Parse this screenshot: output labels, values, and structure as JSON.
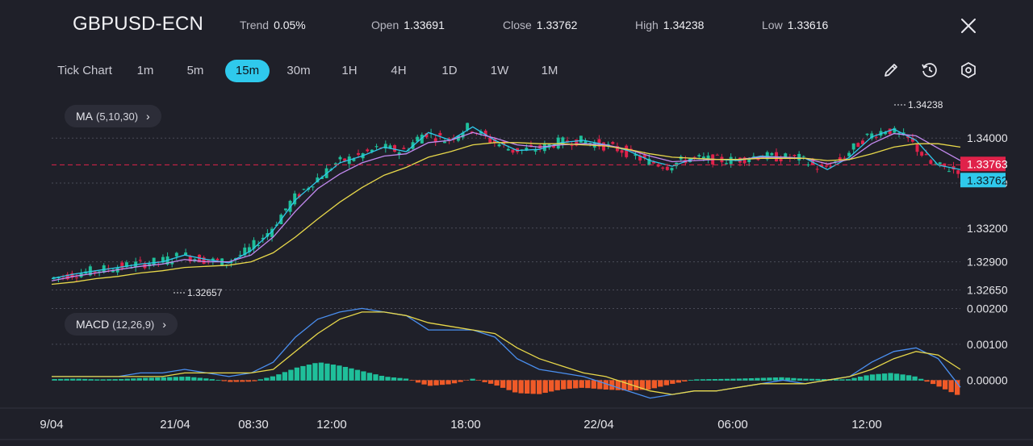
{
  "header": {
    "symbol": "GBPUSD-ECN",
    "stats": [
      {
        "label": "Trend",
        "value": "0.05%"
      },
      {
        "label": "Open",
        "value": "1.33691"
      },
      {
        "label": "Close",
        "value": "1.33762"
      },
      {
        "label": "High",
        "value": "1.34238"
      },
      {
        "label": "Low",
        "value": "1.33616"
      }
    ]
  },
  "timeframes": [
    "Tick Chart",
    "1m",
    "5m",
    "15m",
    "30m",
    "1H",
    "4H",
    "1D",
    "1W",
    "1M"
  ],
  "active_timeframe": "15m",
  "tools": [
    "pencil-icon",
    "clock-rewind-icon",
    "settings-hexagon-icon"
  ],
  "indicators": {
    "ma": {
      "label": "MA",
      "params": "(5,10,30)"
    },
    "macd": {
      "label": "MACD",
      "params": "(12,26,9)"
    }
  },
  "colors": {
    "bull": "#1fbf9a",
    "bear": "#e0224a",
    "ma5": "#2fc9ec",
    "ma10": "#c38af0",
    "ma30": "#e8d84a",
    "macd_line": "#4a8ff0",
    "signal_line": "#e8d84a",
    "hist_pos": "#1fbf9a",
    "hist_neg": "#f05a28",
    "active_tab": "#2fc9ec"
  },
  "chart_data": [
    {
      "type": "candlestick",
      "title": "",
      "y_ticks": [
        "1.34000",
        "1.33600",
        "1.33200",
        "1.32900",
        "1.32650"
      ],
      "ylim": [
        1.3256,
        1.3431
      ],
      "x_ticks": [
        "9/04",
        "21/04",
        "08:30",
        "12:00",
        "18:00",
        "22/04",
        "06:00",
        "12:00"
      ],
      "price_tags": {
        "ask": "1.33763",
        "bid": "1.33762"
      },
      "annotations": {
        "high": "1.34238",
        "low": "1.32657"
      },
      "series": [
        {
          "name": "MA5",
          "values": [
            1.3275,
            1.3279,
            1.3282,
            1.3285,
            1.3288,
            1.329,
            1.3296,
            1.3292,
            1.3289,
            1.33,
            1.3318,
            1.3345,
            1.3362,
            1.3378,
            1.3384,
            1.3392,
            1.3388,
            1.3405,
            1.3398,
            1.341,
            1.3398,
            1.3389,
            1.339,
            1.3396,
            1.3398,
            1.3394,
            1.3389,
            1.338,
            1.3375,
            1.3382,
            1.3381,
            1.338,
            1.3384,
            1.3383,
            1.3382,
            1.3372,
            1.3383,
            1.3401,
            1.3408,
            1.3398,
            1.3376,
            1.3372
          ]
        },
        {
          "name": "MA10",
          "values": [
            1.3273,
            1.3277,
            1.328,
            1.3283,
            1.3286,
            1.3288,
            1.3292,
            1.329,
            1.329,
            1.3296,
            1.3312,
            1.3335,
            1.3355,
            1.3368,
            1.3378,
            1.3384,
            1.3386,
            1.3396,
            1.3398,
            1.3405,
            1.34,
            1.3394,
            1.3392,
            1.3394,
            1.3395,
            1.3394,
            1.339,
            1.3384,
            1.3379,
            1.338,
            1.3381,
            1.3381,
            1.3383,
            1.3383,
            1.3382,
            1.3377,
            1.3381,
            1.3395,
            1.3404,
            1.3402,
            1.3391,
            1.338
          ]
        },
        {
          "name": "MA30",
          "values": [
            1.327,
            1.3272,
            1.3275,
            1.3277,
            1.328,
            1.3282,
            1.3285,
            1.3286,
            1.3287,
            1.329,
            1.3298,
            1.3312,
            1.3328,
            1.3343,
            1.3356,
            1.3367,
            1.3374,
            1.3383,
            1.3388,
            1.3394,
            1.3396,
            1.3396,
            1.3395,
            1.3395,
            1.3394,
            1.3393,
            1.339,
            1.3386,
            1.3383,
            1.3382,
            1.3381,
            1.3381,
            1.3382,
            1.3382,
            1.3382,
            1.338,
            1.3381,
            1.3386,
            1.3392,
            1.3395,
            1.3395,
            1.3392
          ]
        }
      ]
    },
    {
      "type": "macd",
      "title": "",
      "y_ticks": [
        "0.00200",
        "0.00100",
        "0.00000"
      ],
      "ylim": [
        -0.0006,
        0.0021
      ],
      "macd": [
        0.0001,
        0.0001,
        0.0001,
        0.0001,
        0.0002,
        0.0002,
        0.0003,
        0.0002,
        0.0001,
        0.0002,
        0.0005,
        0.0012,
        0.0017,
        0.0019,
        0.002,
        0.0019,
        0.0018,
        0.0014,
        0.0014,
        0.0014,
        0.0012,
        0.0006,
        0.0003,
        0.0002,
        0.0001,
        -0.0001,
        -0.0003,
        -0.0005,
        -0.0004,
        -0.0003,
        -0.0003,
        -0.0002,
        -0.0001,
        0.0,
        -0.0001,
        0.0,
        0.0001,
        0.0005,
        0.0008,
        0.0009,
        0.0006,
        -0.0002
      ],
      "signal": [
        0.0001,
        0.0001,
        0.0001,
        0.0001,
        0.0001,
        0.0001,
        0.0002,
        0.0002,
        0.0002,
        0.0002,
        0.0003,
        0.0008,
        0.0013,
        0.0017,
        0.0019,
        0.0019,
        0.0018,
        0.0016,
        0.0015,
        0.0014,
        0.0013,
        0.0009,
        0.0006,
        0.0004,
        0.0002,
        0.0001,
        -0.0001,
        -0.0003,
        -0.0004,
        -0.0003,
        -0.0003,
        -0.0002,
        -0.0001,
        -0.0001,
        -0.0001,
        0.0,
        0.0001,
        0.0003,
        0.0006,
        0.0008,
        0.0007,
        0.0003
      ],
      "histogram": [
        3e-05,
        4e-05,
        2e-05,
        3e-05,
        6e-05,
        8e-05,
        0.0001,
        4e-05,
        -4e-05,
        -3e-05,
        0.00012,
        0.00035,
        0.0005,
        0.0004,
        0.00025,
        0.0001,
        4e-05,
        -0.00015,
        -0.0001,
        4e-05,
        -0.00012,
        -0.00035,
        -0.00038,
        -0.00025,
        -0.0002,
        -0.00025,
        -0.00028,
        -0.00025,
        -0.0001,
        2e-05,
        3e-05,
        4e-05,
        6e-05,
        8e-05,
        4e-05,
        3e-05,
        2e-05,
        0.00015,
        0.0002,
        0.00012,
        -0.00012,
        -0.0004
      ]
    }
  ]
}
